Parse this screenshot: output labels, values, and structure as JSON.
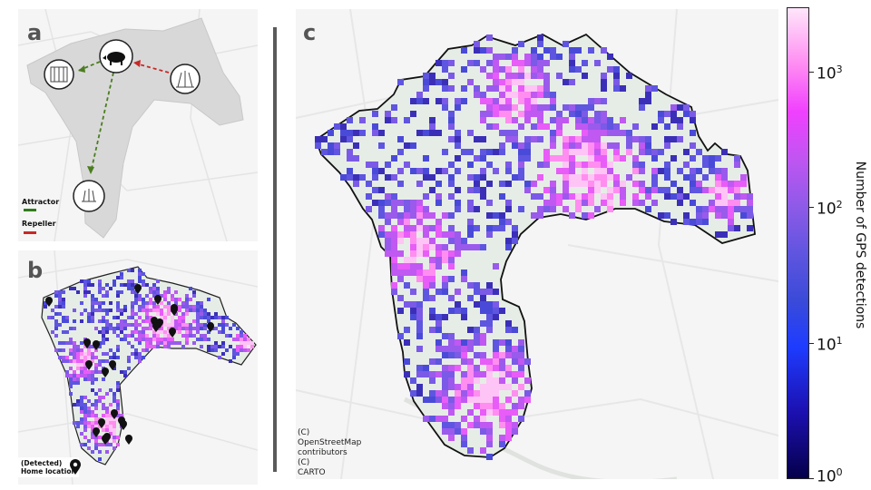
{
  "panel_a": {
    "letter": "a",
    "legend": [
      {
        "label": "Attractor",
        "color": "#2e7d1a"
      },
      {
        "label": "Repeller",
        "color": "#c62828"
      }
    ],
    "icons": [
      "wild-boar-icon",
      "building-icon",
      "field-icon",
      "crop-icon"
    ],
    "arrow_colors": {
      "attractor": "#4a7d1e",
      "repeller": "#c62828"
    }
  },
  "panel_b": {
    "letter": "b",
    "home_legend_line1": "(Detected)",
    "home_legend_line2": "Home location"
  },
  "panel_c": {
    "letter": "c",
    "attribution": [
      "(C)",
      "OpenStreetMap",
      "contributors",
      "(C)",
      "CARTO"
    ]
  },
  "colorbar": {
    "title": "Number of GPS detections",
    "scale": "log",
    "ticks": [
      {
        "base": "10",
        "exp": "0"
      },
      {
        "base": "10",
        "exp": "1"
      },
      {
        "base": "10",
        "exp": "2"
      },
      {
        "base": "10",
        "exp": "3"
      }
    ],
    "colors": [
      "#05004a",
      "#1e3cff",
      "#8f5ae8",
      "#f040ff",
      "#ffe6fb"
    ]
  }
}
